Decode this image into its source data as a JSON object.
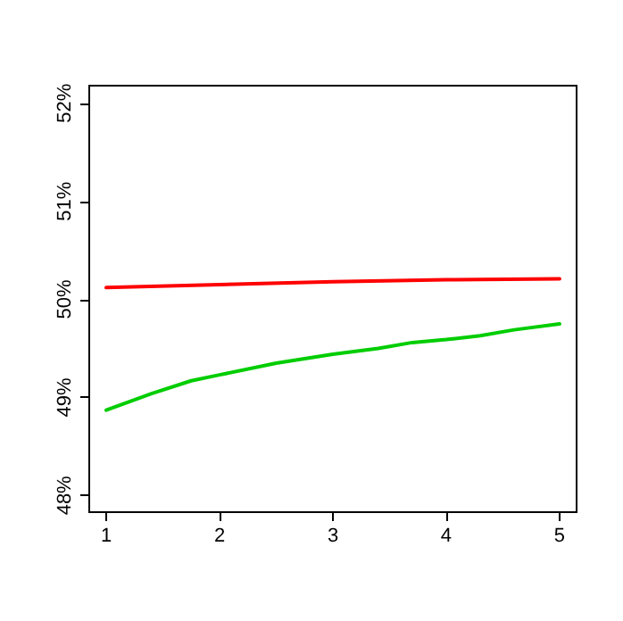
{
  "chart_data": {
    "type": "line",
    "series": [
      {
        "color": "#ff0000",
        "x": [
          1,
          2,
          3,
          4,
          5
        ],
        "values": [
          50.12,
          50.15,
          50.18,
          50.2,
          50.21
        ]
      },
      {
        "color": "#00cd00",
        "x": [
          1,
          1.4,
          1.75,
          2,
          2.5,
          3,
          3.4,
          3.7,
          4,
          4.3,
          4.6,
          5
        ],
        "values": [
          48.87,
          49.04,
          49.17,
          49.23,
          49.35,
          49.44,
          49.5,
          49.56,
          49.59,
          49.63,
          49.69,
          49.75
        ]
      }
    ],
    "xlim": [
      0.85,
      5.15
    ],
    "xticks": [
      1,
      2,
      3,
      4,
      5
    ],
    "ylim": [
      47.83,
      52.18
    ],
    "yticks": [
      {
        "value": 48,
        "label": "48%"
      },
      {
        "value": 49,
        "label": "49%"
      },
      {
        "value": 50,
        "label": "50%"
      },
      {
        "value": 51,
        "label": "51%"
      },
      {
        "value": 52,
        "label": "52%"
      }
    ],
    "grid": false,
    "marker": "none",
    "line_style": "solid"
  }
}
